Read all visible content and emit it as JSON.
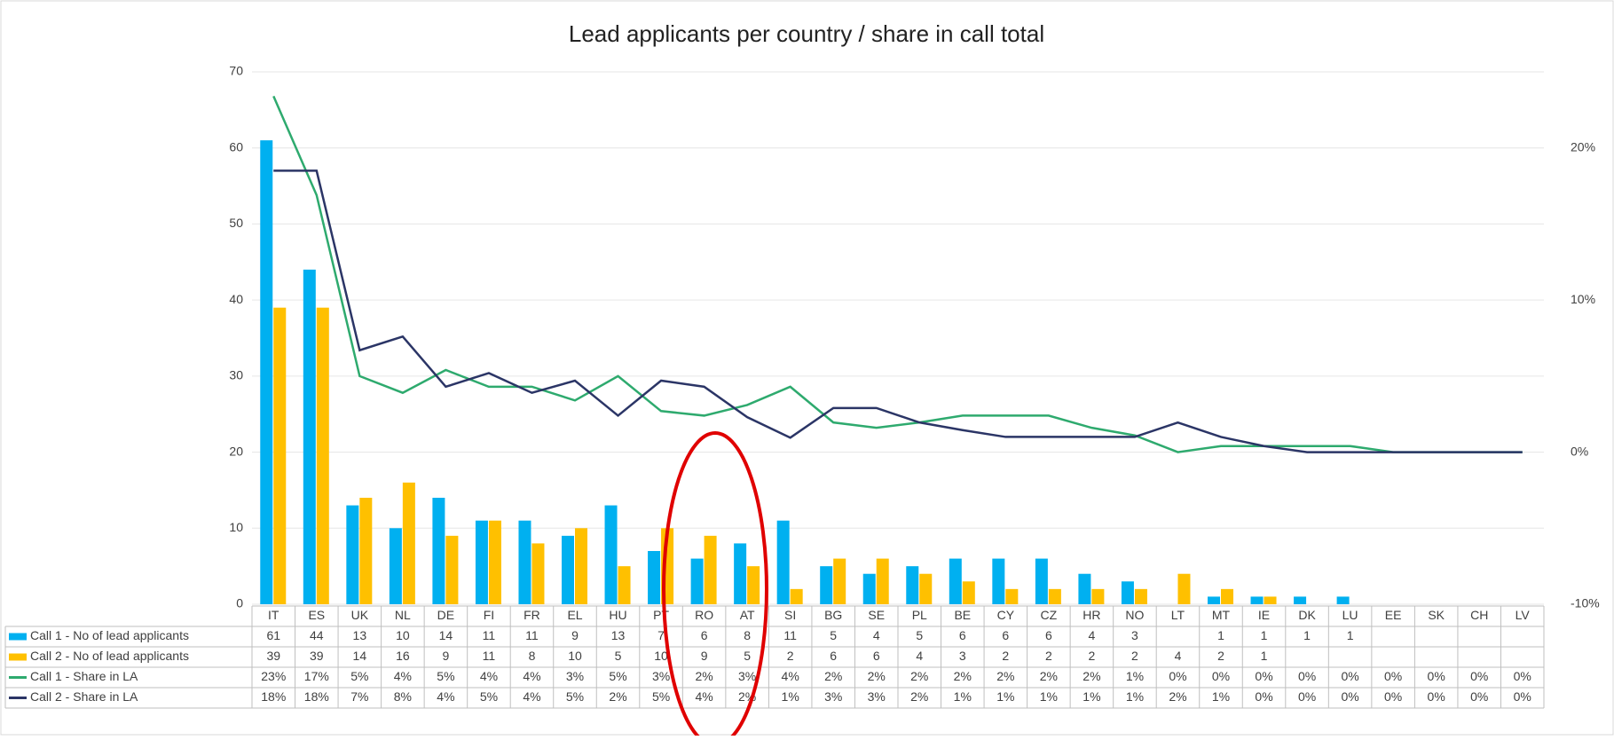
{
  "chart_data": {
    "type": "bar-line",
    "title": "Lead applicants per country / share in call total",
    "categories": [
      "IT",
      "ES",
      "UK",
      "NL",
      "DE",
      "FI",
      "FR",
      "EL",
      "HU",
      "PT",
      "RO",
      "AT",
      "SI",
      "BG",
      "SE",
      "PL",
      "BE",
      "CY",
      "CZ",
      "HR",
      "NO",
      "LT",
      "MT",
      "IE",
      "DK",
      "LU",
      "EE",
      "SK",
      "CH",
      "LV"
    ],
    "series": [
      {
        "name": "Call 1 - No of lead applicants",
        "color": "#00b0f0",
        "kind": "bar",
        "values": [
          61,
          44,
          13,
          10,
          14,
          11,
          11,
          9,
          13,
          7,
          6,
          8,
          11,
          5,
          4,
          5,
          6,
          6,
          6,
          4,
          3,
          null,
          1,
          1,
          1,
          1,
          null,
          null,
          null,
          null
        ]
      },
      {
        "name": "Call 2 - No of lead applicants",
        "color": "#ffc000",
        "kind": "bar",
        "values": [
          39,
          39,
          14,
          16,
          9,
          11,
          8,
          10,
          5,
          10,
          9,
          5,
          2,
          6,
          6,
          4,
          3,
          2,
          2,
          2,
          2,
          4,
          2,
          1,
          null,
          null,
          null,
          null,
          null,
          null
        ]
      },
      {
        "name": "Call 1 - Share in LA",
        "color": "#2eaa6e",
        "kind": "line",
        "axis": "y2",
        "values": [
          23.4,
          16.9,
          5.0,
          3.9,
          5.4,
          4.3,
          4.3,
          3.4,
          5.0,
          2.7,
          2.4,
          3.1,
          4.3,
          1.95,
          1.6,
          1.95,
          2.4,
          2.4,
          2.4,
          1.6,
          1.1,
          0,
          0.4,
          0.4,
          0.4,
          0.4,
          0,
          0,
          0,
          0
        ],
        "value_labels": [
          "23%",
          "17%",
          "5%",
          "4%",
          "5%",
          "4%",
          "4%",
          "3%",
          "5%",
          "3%",
          "2%",
          "3%",
          "4%",
          "2%",
          "2%",
          "2%",
          "2%",
          "2%",
          "2%",
          "2%",
          "1%",
          "0%",
          "0%",
          "0%",
          "0%",
          "0%",
          "0%",
          "0%",
          "0%",
          "0%"
        ]
      },
      {
        "name": "Call 2 - Share in LA",
        "color": "#2b3566",
        "kind": "line",
        "axis": "y2",
        "values": [
          18.5,
          18.5,
          6.7,
          7.6,
          4.3,
          5.2,
          3.9,
          4.7,
          2.4,
          4.7,
          4.3,
          2.3,
          0.95,
          2.9,
          2.9,
          1.95,
          1.45,
          1.0,
          1.0,
          1.0,
          1.0,
          1.95,
          1.0,
          0.4,
          0,
          0,
          0,
          0,
          0,
          0
        ],
        "value_labels": [
          "18%",
          "18%",
          "7%",
          "8%",
          "4%",
          "5%",
          "4%",
          "5%",
          "2%",
          "5%",
          "4%",
          "2%",
          "1%",
          "3%",
          "3%",
          "2%",
          "1%",
          "1%",
          "1%",
          "1%",
          "1%",
          "2%",
          "1%",
          "0%",
          "0%",
          "0%",
          "0%",
          "0%",
          "0%",
          "0%"
        ]
      }
    ],
    "ylim": [
      0,
      70
    ],
    "yticks": [
      0,
      10,
      20,
      30,
      40,
      50,
      60,
      70
    ],
    "y2lim": [
      -10,
      25
    ],
    "y2ticks": [
      {
        "value": -10,
        "label": "-10%"
      },
      {
        "value": 0,
        "label": "0%"
      },
      {
        "value": 10,
        "label": "10%"
      },
      {
        "value": 20,
        "label": "20%"
      }
    ],
    "grid": true
  }
}
